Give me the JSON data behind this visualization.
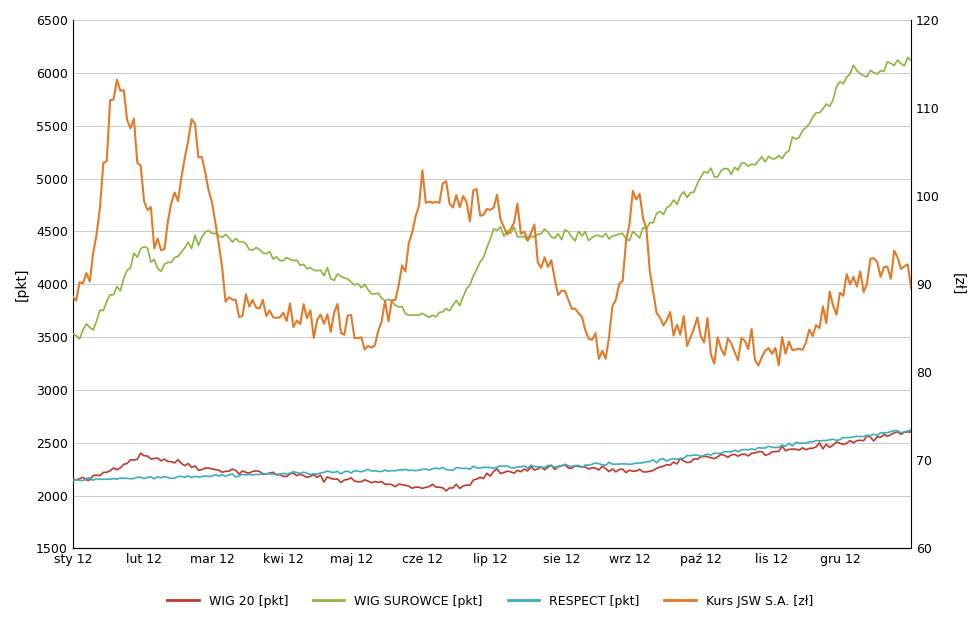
{
  "title": "",
  "ylabel_left": "[pkt]",
  "ylabel_right": "[zł]",
  "xlim": [
    0,
    247
  ],
  "ylim_left": [
    1500,
    6500
  ],
  "ylim_right": [
    60,
    120
  ],
  "yticks_left": [
    1500,
    2000,
    2500,
    3000,
    3500,
    4000,
    4500,
    5000,
    5500,
    6000,
    6500
  ],
  "yticks_right": [
    60,
    70,
    80,
    90,
    100,
    110,
    120
  ],
  "xtick_labels": [
    "sty 12",
    "lut 12",
    "mar 12",
    "kwi 12",
    "maj 12",
    "cze 12",
    "lip 12",
    "sie 12",
    "wrz 12",
    "paź 12",
    "lis 12",
    "gru 12"
  ],
  "xtick_positions": [
    0,
    21,
    41,
    62,
    82,
    103,
    123,
    144,
    164,
    185,
    206,
    226
  ],
  "colors": {
    "WIG20": "#c0392b",
    "WIGSUROWCE": "#8db53c",
    "RESPECT": "#3aafbe",
    "KURSJSW": "#e07b2a"
  },
  "legend_labels": [
    "WIG 20 [pkt]",
    "WIG SUROWCE [pkt]",
    "RESPECT [pkt]",
    "Kurs JSW S.A. [zł]"
  ],
  "background_color": "#ffffff",
  "grid_color": "#cccccc"
}
